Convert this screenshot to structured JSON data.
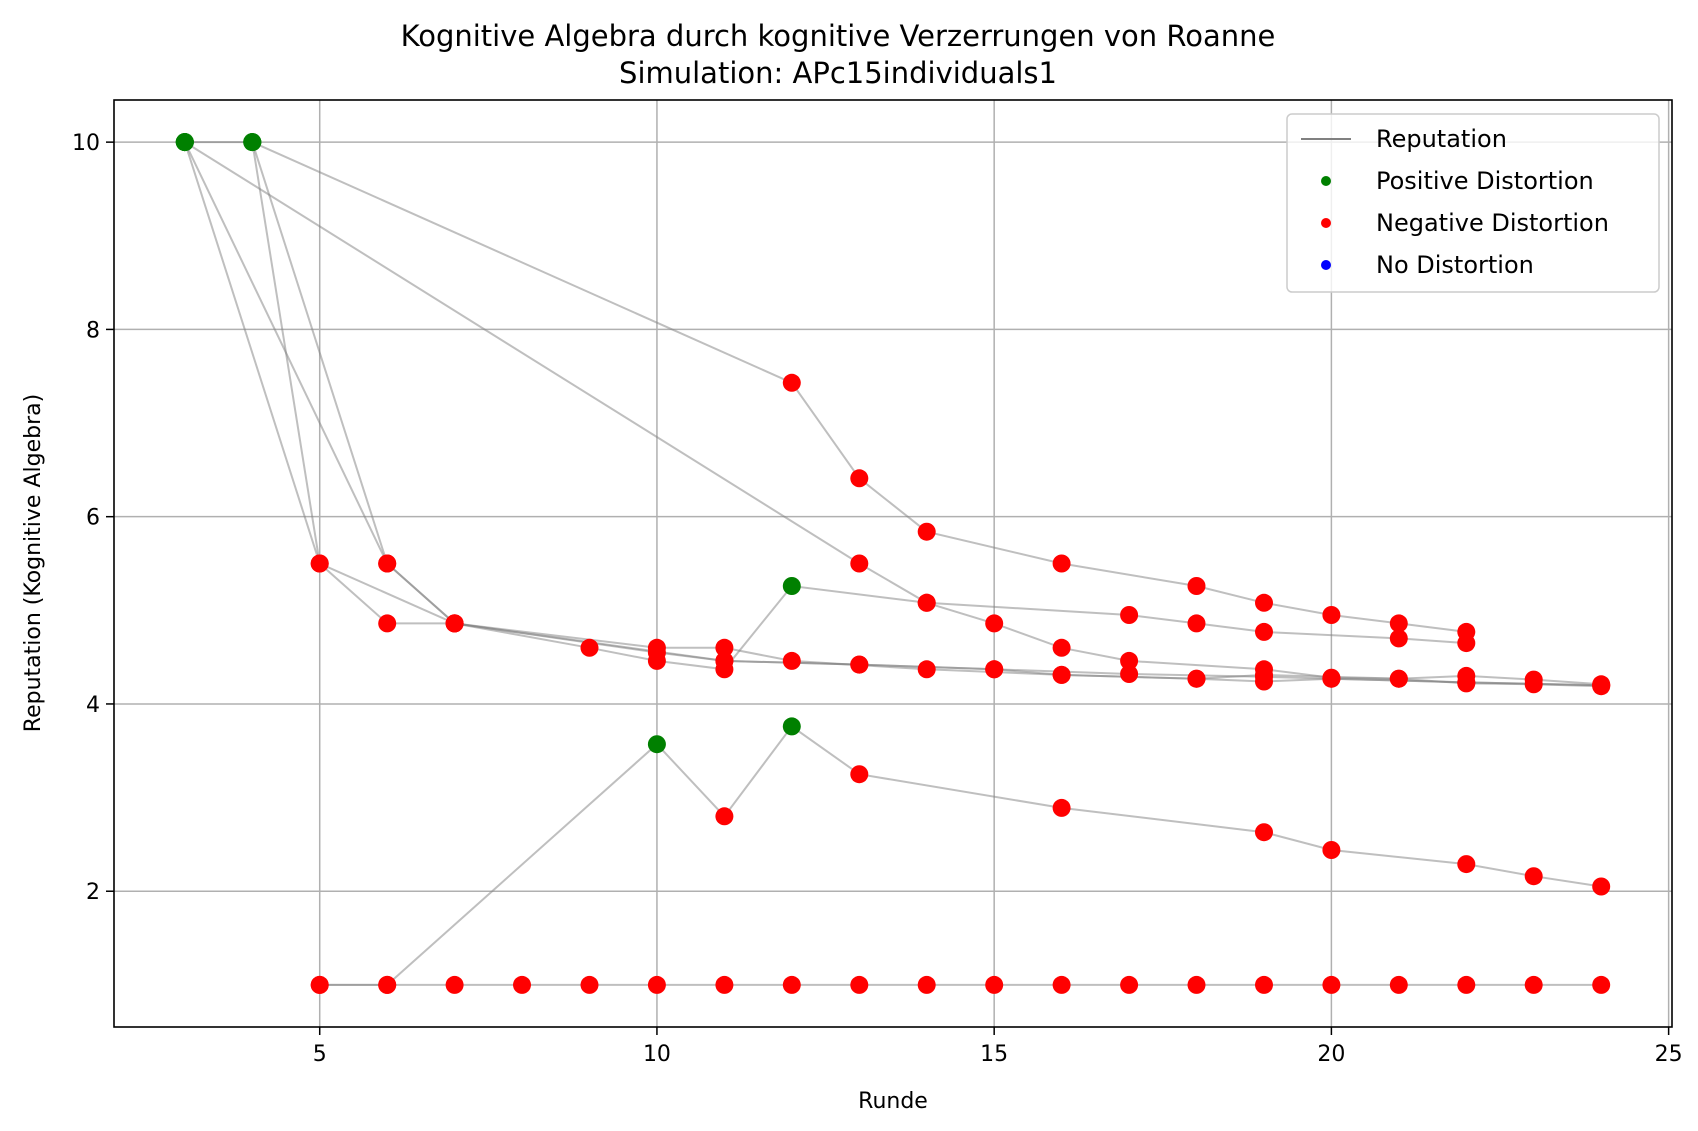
{
  "chart_data": {
    "type": "scatter",
    "title": "Kognitive Algebra durch kognitive Verzerrungen von Roanne",
    "subtitle": "Simulation: APc15individuals1",
    "xlabel": "Runde",
    "ylabel": "Reputation (Kognitive Algebra)",
    "xlim": [
      1.95,
      25.05
    ],
    "ylim": [
      0.55,
      10.45
    ],
    "xticks": [
      5,
      10,
      15,
      20,
      25
    ],
    "yticks": [
      2,
      4,
      6,
      8,
      10
    ],
    "grid": true,
    "legend_position": "top-right",
    "legend": [
      "Reputation",
      "Positive Distortion",
      "Negative Distortion",
      "No Distortion"
    ],
    "colors": {
      "line": "#808080",
      "positive": "#008000",
      "negative": "#ff0000",
      "none": "#0000ff"
    },
    "series": [
      {
        "points": [
          [
            3,
            10
          ],
          [
            4,
            10
          ],
          [
            12,
            7.43
          ],
          [
            13,
            6.41
          ],
          [
            14,
            5.84
          ],
          [
            16,
            5.5
          ],
          [
            18,
            5.26
          ],
          [
            19,
            5.08
          ],
          [
            20,
            4.95
          ],
          [
            21,
            4.86
          ],
          [
            22,
            4.77
          ]
        ],
        "distortion": [
          "positive",
          "positive",
          "negative",
          "negative",
          "negative",
          "negative",
          "negative",
          "negative",
          "negative",
          "negative",
          "negative"
        ]
      },
      {
        "points": [
          [
            3,
            10
          ],
          [
            13,
            5.5
          ],
          [
            14,
            5.08
          ],
          [
            15,
            4.86
          ],
          [
            16,
            4.6
          ],
          [
            17,
            4.46
          ],
          [
            19,
            4.37
          ],
          [
            20,
            4.28
          ],
          [
            21,
            4.27
          ],
          [
            22,
            4.22
          ],
          [
            23,
            4.21
          ],
          [
            24,
            4.19
          ]
        ],
        "distortion": [
          "positive",
          "negative",
          "negative",
          "negative",
          "negative",
          "negative",
          "negative",
          "negative",
          "negative",
          "negative",
          "negative",
          "negative"
        ]
      },
      {
        "points": [
          [
            3,
            10
          ],
          [
            5,
            5.5
          ],
          [
            6,
            4.86
          ],
          [
            7,
            4.86
          ],
          [
            10,
            4.6
          ],
          [
            11,
            4.6
          ],
          [
            12,
            4.46
          ],
          [
            14,
            4.37
          ],
          [
            16,
            4.31
          ],
          [
            18,
            4.27
          ],
          [
            19,
            4.24
          ],
          [
            20,
            4.27
          ],
          [
            22,
            4.23
          ],
          [
            24,
            4.2
          ]
        ],
        "distortion": [
          "positive",
          "negative",
          "negative",
          "negative",
          "negative",
          "negative",
          "negative",
          "negative",
          "negative",
          "negative",
          "negative",
          "negative",
          "negative",
          "negative"
        ]
      },
      {
        "points": [
          [
            3,
            10
          ],
          [
            6,
            5.5
          ],
          [
            7,
            4.86
          ],
          [
            9,
            4.6
          ],
          [
            10,
            4.46
          ],
          [
            11,
            4.37
          ],
          [
            12,
            5.26
          ],
          [
            14,
            5.08
          ],
          [
            17,
            4.95
          ],
          [
            18,
            4.86
          ],
          [
            19,
            4.77
          ],
          [
            21,
            4.7
          ],
          [
            22,
            4.65
          ]
        ],
        "distortion": [
          "positive",
          "negative",
          "negative",
          "negative",
          "negative",
          "negative",
          "positive",
          "negative",
          "negative",
          "negative",
          "negative",
          "negative",
          "negative"
        ]
      },
      {
        "points": [
          [
            4,
            10
          ],
          [
            5,
            5.5
          ],
          [
            7,
            4.86
          ],
          [
            11,
            4.46
          ],
          [
            13,
            4.42
          ],
          [
            15,
            4.37
          ],
          [
            16,
            4.31
          ],
          [
            18,
            4.27
          ],
          [
            19,
            4.31
          ],
          [
            21,
            4.27
          ],
          [
            22,
            4.3
          ],
          [
            23,
            4.26
          ],
          [
            24,
            4.21
          ]
        ],
        "distortion": [
          "positive",
          "negative",
          "negative",
          "negative",
          "negative",
          "negative",
          "negative",
          "negative",
          "negative",
          "negative",
          "negative",
          "negative",
          "negative"
        ]
      },
      {
        "points": [
          [
            4,
            10
          ],
          [
            6,
            5.5
          ],
          [
            7,
            4.86
          ],
          [
            10,
            4.55
          ],
          [
            11,
            4.46
          ],
          [
            13,
            4.42
          ],
          [
            15,
            4.37
          ],
          [
            17,
            4.32
          ],
          [
            19,
            4.29
          ],
          [
            20,
            4.27
          ],
          [
            22,
            4.23
          ],
          [
            24,
            4.2
          ]
        ],
        "distortion": [
          "positive",
          "negative",
          "negative",
          "negative",
          "negative",
          "negative",
          "negative",
          "negative",
          "negative",
          "negative",
          "negative",
          "negative"
        ]
      },
      {
        "points": [
          [
            5,
            1
          ],
          [
            6,
            1
          ],
          [
            10,
            3.57
          ],
          [
            11,
            2.8
          ],
          [
            12,
            3.76
          ],
          [
            13,
            3.25
          ],
          [
            16,
            2.89
          ],
          [
            19,
            2.63
          ],
          [
            20,
            2.44
          ],
          [
            22,
            2.29
          ],
          [
            23,
            2.16
          ],
          [
            24,
            2.05
          ]
        ],
        "distortion": [
          "negative",
          "negative",
          "positive",
          "negative",
          "positive",
          "negative",
          "negative",
          "negative",
          "negative",
          "negative",
          "negative",
          "negative"
        ]
      },
      {
        "points": [
          [
            5,
            1
          ],
          [
            6,
            1
          ],
          [
            7,
            1
          ],
          [
            8,
            1
          ],
          [
            9,
            1
          ],
          [
            10,
            1
          ],
          [
            11,
            1
          ],
          [
            12,
            1
          ],
          [
            13,
            1
          ],
          [
            14,
            1
          ],
          [
            15,
            1
          ],
          [
            16,
            1
          ],
          [
            17,
            1
          ],
          [
            18,
            1
          ],
          [
            19,
            1
          ],
          [
            20,
            1
          ],
          [
            21,
            1
          ],
          [
            22,
            1
          ],
          [
            23,
            1
          ],
          [
            24,
            1
          ]
        ],
        "distortion": [
          "negative",
          "negative",
          "negative",
          "negative",
          "negative",
          "negative",
          "negative",
          "negative",
          "negative",
          "negative",
          "negative",
          "negative",
          "negative",
          "negative",
          "negative",
          "negative",
          "negative",
          "negative",
          "negative",
          "negative"
        ]
      }
    ]
  }
}
